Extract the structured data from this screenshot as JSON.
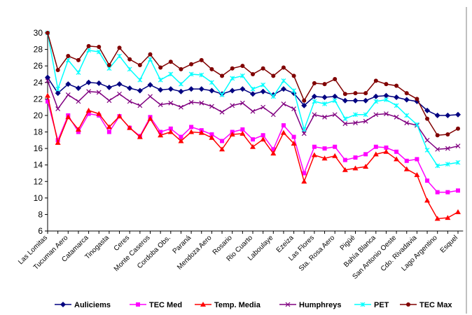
{
  "chart_data": {
    "type": "line",
    "categories": [
      "Las Lomitas",
      null,
      "Tucuman Aero",
      null,
      "Catamarca",
      null,
      "Tinogasta",
      null,
      "Ceres",
      null,
      "Monte Caseros",
      null,
      "Cordoba Obs.",
      null,
      "Paraná",
      null,
      "Mendoza Aero",
      null,
      "Rosario",
      null,
      "Rio Cuarto",
      null,
      "Laboulaye",
      null,
      "Ezeiza",
      null,
      "Las Flores",
      null,
      "Sta. Rosa Aero",
      null,
      "Pigüé",
      null,
      "Bahía Blanca",
      null,
      "San Antonio Oeste",
      null,
      "Cdo. Rivadavia",
      null,
      "Lago Argentino",
      null,
      "Esquel"
    ],
    "series": [
      {
        "name": "Auliciems",
        "color": "#000080",
        "marker": "diamond",
        "values": [
          24.6,
          22.7,
          23.8,
          23.3,
          24.0,
          23.9,
          23.4,
          23.8,
          23.3,
          23.0,
          23.7,
          23.1,
          23.2,
          22.9,
          23.2,
          23.2,
          23.0,
          22.6,
          23.0,
          23.2,
          22.6,
          22.9,
          22.5,
          23.2,
          22.7,
          21.2,
          22.3,
          22.2,
          22.3,
          21.8,
          21.8,
          21.8,
          22.3,
          22.4,
          22.2,
          21.9,
          21.7,
          20.6,
          20.0,
          20.0,
          20.1
        ]
      },
      {
        "name": "TEC Med",
        "color": "#ff00ff",
        "marker": "square",
        "values": [
          21.7,
          17.0,
          20.0,
          18.0,
          20.2,
          20.0,
          18.0,
          19.9,
          18.5,
          17.5,
          19.8,
          18.0,
          18.4,
          17.4,
          18.6,
          18.2,
          17.7,
          16.9,
          18.0,
          18.3,
          17.1,
          17.6,
          15.9,
          18.8,
          17.4,
          13.0,
          16.2,
          16.0,
          16.2,
          14.6,
          14.9,
          15.3,
          16.2,
          16.1,
          15.6,
          14.5,
          14.7,
          12.1,
          10.7,
          10.7,
          10.9
        ]
      },
      {
        "name": "Temp. Media",
        "color": "#ff0000",
        "marker": "triangle",
        "values": [
          22.4,
          16.7,
          19.8,
          18.3,
          20.6,
          20.2,
          18.6,
          19.9,
          18.5,
          17.4,
          19.6,
          17.6,
          18.0,
          16.9,
          18.0,
          17.9,
          17.3,
          15.9,
          17.7,
          17.8,
          16.2,
          17.1,
          15.4,
          17.9,
          16.6,
          12.0,
          15.2,
          14.8,
          15.1,
          13.4,
          13.6,
          13.8,
          15.3,
          15.6,
          14.7,
          13.5,
          12.8,
          9.7,
          7.5,
          7.6,
          8.3
        ]
      },
      {
        "name": "Humphreys",
        "color": "#800080",
        "marker": "x",
        "values": [
          24.2,
          20.8,
          22.5,
          21.7,
          22.9,
          22.8,
          21.8,
          22.6,
          21.7,
          21.2,
          22.3,
          21.3,
          21.5,
          21.0,
          21.6,
          21.5,
          21.1,
          20.4,
          21.2,
          21.5,
          20.5,
          21.0,
          20.1,
          21.4,
          20.8,
          17.8,
          20.1,
          19.8,
          20.1,
          19.0,
          19.1,
          19.3,
          20.1,
          20.2,
          19.8,
          19.1,
          18.8,
          17.0,
          15.9,
          16.0,
          16.3
        ]
      },
      {
        "name": "PET",
        "color": "#00ffff",
        "marker": "star",
        "values": [
          30.0,
          23.2,
          26.7,
          25.2,
          27.9,
          27.7,
          25.7,
          27.2,
          25.6,
          24.3,
          26.8,
          24.3,
          25.0,
          23.8,
          25.0,
          24.9,
          24.0,
          22.5,
          24.5,
          24.8,
          23.2,
          23.7,
          22.3,
          24.2,
          23.0,
          18.3,
          21.7,
          21.4,
          21.8,
          19.6,
          20.1,
          20.1,
          21.7,
          21.9,
          21.2,
          20.0,
          18.9,
          15.8,
          13.9,
          14.1,
          14.3
        ]
      },
      {
        "name": "TEC Max",
        "color": "#800000",
        "marker": "circle",
        "values": [
          30.0,
          25.5,
          27.2,
          26.7,
          28.4,
          28.3,
          26.1,
          28.2,
          26.8,
          26.1,
          27.4,
          25.8,
          26.5,
          25.6,
          26.2,
          26.7,
          25.6,
          24.8,
          25.7,
          26.0,
          25.0,
          25.7,
          24.8,
          25.8,
          24.8,
          21.8,
          23.9,
          23.8,
          24.4,
          22.6,
          22.7,
          22.7,
          24.2,
          23.8,
          23.6,
          22.7,
          22.0,
          19.6,
          17.6,
          17.7,
          18.4
        ]
      }
    ],
    "ylim": [
      6,
      30
    ],
    "yticks": [
      6,
      8,
      10,
      12,
      14,
      16,
      18,
      20,
      22,
      24,
      26,
      28,
      30
    ],
    "grid": false,
    "legend": "bottom"
  }
}
